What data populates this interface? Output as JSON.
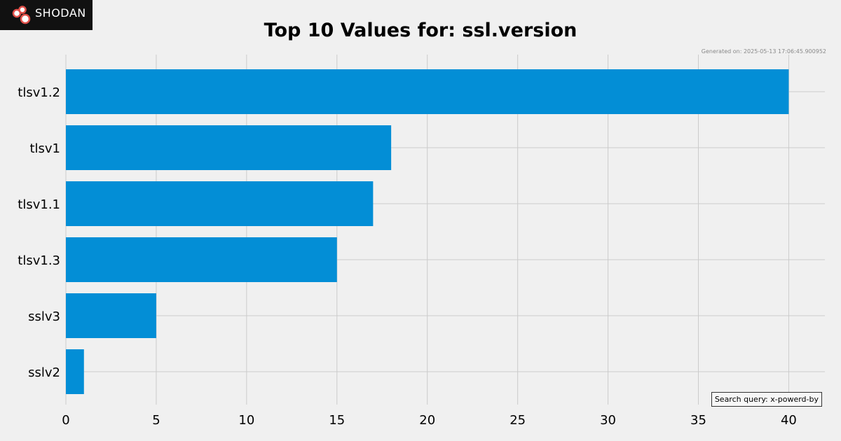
{
  "logo": {
    "text": "SHODAN",
    "icon": "shodan-logo-icon",
    "colors": {
      "background": "#111111",
      "mark": "#e0504a"
    }
  },
  "generated_text": "Generated on: 2025-05-13 17:06:45.900952",
  "search_query_text": "Search query: x-powerd-by",
  "colors": {
    "bar": "#038ed6",
    "grid": "#cbcbcb",
    "background": "#f0f0f0"
  },
  "chart_data": {
    "type": "bar",
    "orientation": "horizontal",
    "title": "Top 10 Values for: ssl.version",
    "xlabel": "",
    "ylabel": "",
    "categories": [
      "tlsv1.2",
      "tlsv1",
      "tlsv1.1",
      "tlsv1.3",
      "sslv3",
      "sslv2"
    ],
    "values": [
      40,
      18,
      17,
      15,
      5,
      1
    ],
    "xlim": [
      0,
      42
    ],
    "xticks": [
      0,
      5,
      10,
      15,
      20,
      25,
      30,
      35,
      40
    ],
    "grid": true,
    "legend": "none"
  }
}
